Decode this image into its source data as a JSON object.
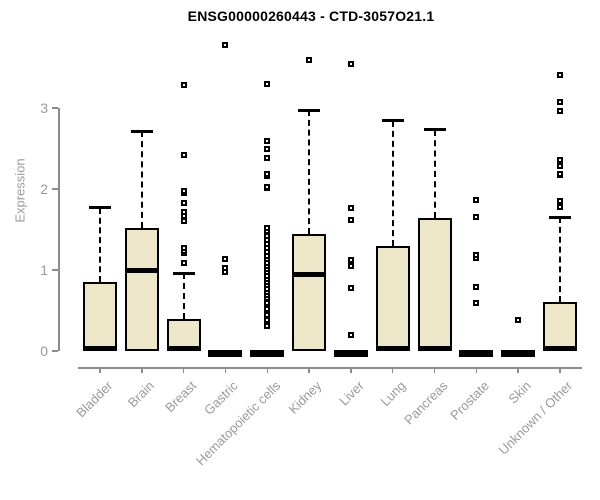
{
  "title": "ENSG00000260443 - CTD-3057O21.1",
  "chart_data": {
    "type": "boxplot",
    "title": "ENSG00000260443 - CTD-3057O21.1",
    "xlabel": "",
    "ylabel": "Expression",
    "ylim": [
      0,
      3.85
    ],
    "yticks": [
      0,
      1,
      2,
      3
    ],
    "grid": false,
    "legend": "none",
    "categories": [
      "Bladder",
      "Brain",
      "Breast",
      "Gastric",
      "Hematopoietic cells",
      "Kidney",
      "Liver",
      "Lung",
      "Pancreas",
      "Prostate",
      "Skin",
      "Unknown / Other"
    ],
    "series": [
      {
        "name": "Bladder",
        "whisker_low": 0,
        "q1": 0,
        "median": 0.03,
        "q3": 0.85,
        "whisker_high": 1.77,
        "outliers": []
      },
      {
        "name": "Brain",
        "whisker_low": 0,
        "q1": 0,
        "median": 1.0,
        "q3": 1.52,
        "whisker_high": 2.71,
        "outliers": []
      },
      {
        "name": "Breast",
        "whisker_low": 0,
        "q1": 0,
        "median": 0.03,
        "q3": 0.4,
        "whisker_high": 0.96,
        "outliers": [
          1.09,
          1.21,
          1.24,
          1.27,
          1.61,
          1.67,
          1.71,
          1.83,
          1.95,
          1.98,
          2.42,
          3.28
        ]
      },
      {
        "name": "Gastric",
        "whisker_low": 0,
        "q1": 0,
        "median": 0.02,
        "q3": 0.03,
        "whisker_high": 0.03,
        "outliers": [
          0.97,
          1.03,
          1.14,
          3.78
        ]
      },
      {
        "name": "Hematopoietic cells",
        "whisker_low": 0,
        "q1": 0,
        "median": 0.02,
        "q3": 0.03,
        "whisker_high": 0.03,
        "outliers": [
          0.31,
          0.38,
          0.45,
          0.52,
          0.59,
          0.65,
          0.69,
          0.73,
          0.77,
          0.81,
          0.85,
          0.89,
          0.93,
          0.97,
          1.01,
          1.05,
          1.09,
          1.13,
          1.17,
          1.22,
          1.27,
          1.32,
          1.37,
          1.42,
          1.48,
          1.52,
          2.01,
          2.03,
          2.16,
          2.18,
          2.38,
          2.49,
          2.59,
          3.3
        ]
      },
      {
        "name": "Kidney",
        "whisker_low": 0,
        "q1": 0,
        "median": 0.95,
        "q3": 1.45,
        "whisker_high": 2.97,
        "outliers": [
          3.59
        ]
      },
      {
        "name": "Liver",
        "whisker_low": 0,
        "q1": 0,
        "median": 0.02,
        "q3": 0.03,
        "whisker_high": 0.03,
        "outliers": [
          0.2,
          0.78,
          1.05,
          1.12,
          1.62,
          1.77,
          3.54
        ]
      },
      {
        "name": "Lung",
        "whisker_low": 0,
        "q1": 0,
        "median": 0.03,
        "q3": 1.3,
        "whisker_high": 2.84,
        "outliers": []
      },
      {
        "name": "Pancreas",
        "whisker_low": 0,
        "q1": 0,
        "median": 0.03,
        "q3": 1.64,
        "whisker_high": 2.73,
        "outliers": []
      },
      {
        "name": "Prostate",
        "whisker_low": 0,
        "q1": 0,
        "median": 0.02,
        "q3": 0.03,
        "whisker_high": 0.03,
        "outliers": [
          0.59,
          0.79,
          1.15,
          1.19,
          1.66,
          1.86
        ]
      },
      {
        "name": "Skin",
        "whisker_low": 0,
        "q1": 0,
        "median": 0.02,
        "q3": 0.03,
        "whisker_high": 0.03,
        "outliers": [
          0.38
        ]
      },
      {
        "name": "Unknown / Other",
        "whisker_low": 0,
        "q1": 0,
        "median": 0.03,
        "q3": 0.6,
        "whisker_high": 1.65,
        "outliers": [
          1.78,
          1.85,
          2.17,
          2.19,
          2.28,
          2.36,
          2.96,
          3.07,
          3.41
        ]
      }
    ],
    "colors": {
      "box_fill": "#EDE6C8",
      "box_border": "#000000",
      "median": "#000000",
      "whisker": "#000000",
      "outlier_border": "#000000",
      "axis": "#8C8C8C",
      "tick_label": "#9A9A9A",
      "title": "#000000",
      "background": "#FFFFFF"
    }
  }
}
